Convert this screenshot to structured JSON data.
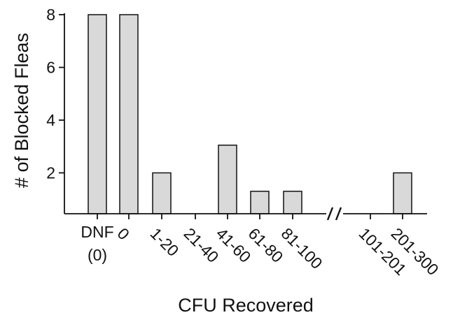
{
  "chart_data": {
    "type": "bar",
    "title": "",
    "xlabel": "CFU Recovered",
    "ylabel": "# of Blocked Fleas",
    "categories": [
      "DNF\n(0)",
      "0",
      "1-20",
      "21-40",
      "41-60",
      "61-80",
      "81-100",
      "101-201",
      "201-300"
    ],
    "values": [
      8,
      8,
      2,
      0,
      3.05,
      1.3,
      1.3,
      0,
      2
    ],
    "yticks": [
      "2",
      "4",
      "6",
      "8"
    ],
    "ylim": [
      0.45,
      8
    ],
    "axis_break_after": "81-100",
    "grid": false,
    "legend": "none",
    "bar_color": "#d9d9d9",
    "bar_edge_color": "#111111"
  }
}
